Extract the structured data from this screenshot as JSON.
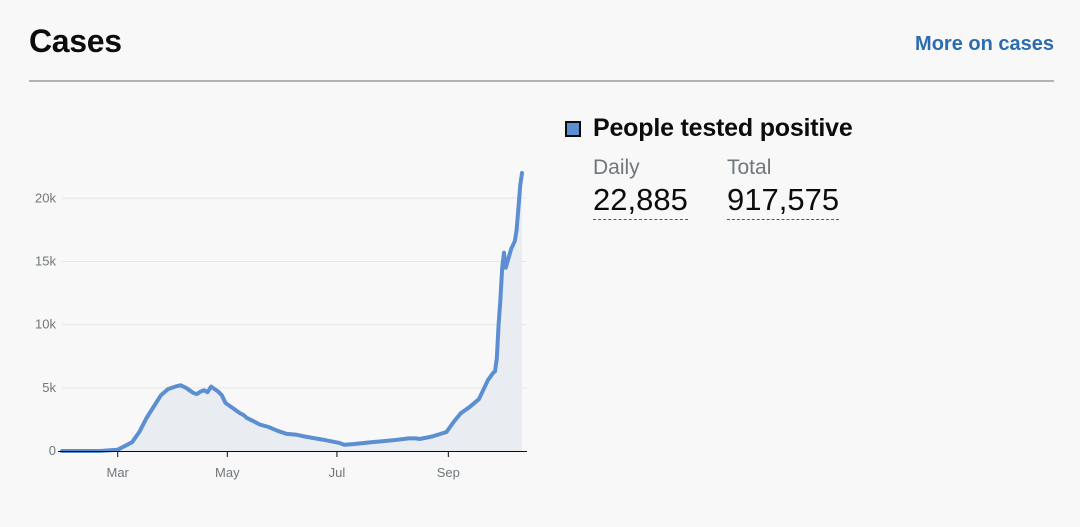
{
  "card": {
    "title": "Cases",
    "more_link": "More on cases"
  },
  "legend": {
    "label": "People tested positive",
    "swatch_color": "#5b8fd1"
  },
  "stats": {
    "daily_label": "Daily",
    "daily_value": "22,885",
    "total_label": "Total",
    "total_value": "917,575"
  },
  "chart_data": {
    "type": "area",
    "ylim": [
      0,
      22000
    ],
    "x_range": [
      "2020-01-30",
      "2020-10-12"
    ],
    "yticks": [
      {
        "value": 0,
        "label": "0"
      },
      {
        "value": 5000,
        "label": "5k"
      },
      {
        "value": 10000,
        "label": "10k"
      },
      {
        "value": 15000,
        "label": "15k"
      },
      {
        "value": 20000,
        "label": "20k"
      }
    ],
    "xticks": [
      {
        "date": "2020-03-01",
        "label": "Mar"
      },
      {
        "date": "2020-05-01",
        "label": "May"
      },
      {
        "date": "2020-07-01",
        "label": "Jul"
      },
      {
        "date": "2020-09-01",
        "label": "Sep"
      }
    ],
    "grid": true,
    "line_color": "#5b8fd1",
    "fill_color": "#e9edf2",
    "series": [
      {
        "x": [
          "2020-01-30",
          "2020-02-20",
          "2020-03-01",
          "2020-03-09",
          "2020-03-13",
          "2020-03-17",
          "2020-03-21",
          "2020-03-25",
          "2020-03-29",
          "2020-04-02",
          "2020-04-05",
          "2020-04-08",
          "2020-04-10",
          "2020-04-12",
          "2020-04-14",
          "2020-04-16",
          "2020-04-18",
          "2020-04-20",
          "2020-04-22",
          "2020-04-24",
          "2020-04-26",
          "2020-04-28",
          "2020-04-30",
          "2020-05-02",
          "2020-05-04",
          "2020-05-06",
          "2020-05-08",
          "2020-05-10",
          "2020-05-12",
          "2020-05-15",
          "2020-05-19",
          "2020-05-24",
          "2020-05-29",
          "2020-06-03",
          "2020-06-08",
          "2020-06-13",
          "2020-06-23",
          "2020-07-02",
          "2020-07-05",
          "2020-07-10",
          "2020-07-20",
          "2020-08-01",
          "2020-08-10",
          "2020-08-14",
          "2020-08-16",
          "2020-08-23",
          "2020-08-31",
          "2020-09-04",
          "2020-09-08",
          "2020-09-13",
          "2020-09-18",
          "2020-09-21",
          "2020-09-23",
          "2020-09-25",
          "2020-09-26",
          "2020-09-27",
          "2020-09-28",
          "2020-09-29",
          "2020-09-30",
          "2020-10-01",
          "2020-10-02",
          "2020-10-03",
          "2020-10-04",
          "2020-10-06",
          "2020-10-08",
          "2020-10-09",
          "2020-10-10",
          "2020-10-11",
          "2020-10-12"
        ],
        "values": [
          0,
          0,
          100,
          700,
          1500,
          2600,
          3500,
          4400,
          4900,
          5100,
          5200,
          5000,
          4800,
          4600,
          4500,
          4700,
          4800,
          4650,
          5100,
          4900,
          4700,
          4400,
          3800,
          3600,
          3400,
          3200,
          3000,
          2850,
          2600,
          2400,
          2100,
          1900,
          1600,
          1350,
          1300,
          1150,
          900,
          650,
          500,
          550,
          700,
          850,
          1000,
          1000,
          950,
          1150,
          1500,
          2300,
          3000,
          3500,
          4100,
          5000,
          5600,
          6000,
          6200,
          6300,
          7300,
          10000,
          12000,
          14500,
          15700,
          14500,
          15000,
          16000,
          16600,
          17500,
          19200,
          21000,
          22000
        ]
      }
    ]
  }
}
